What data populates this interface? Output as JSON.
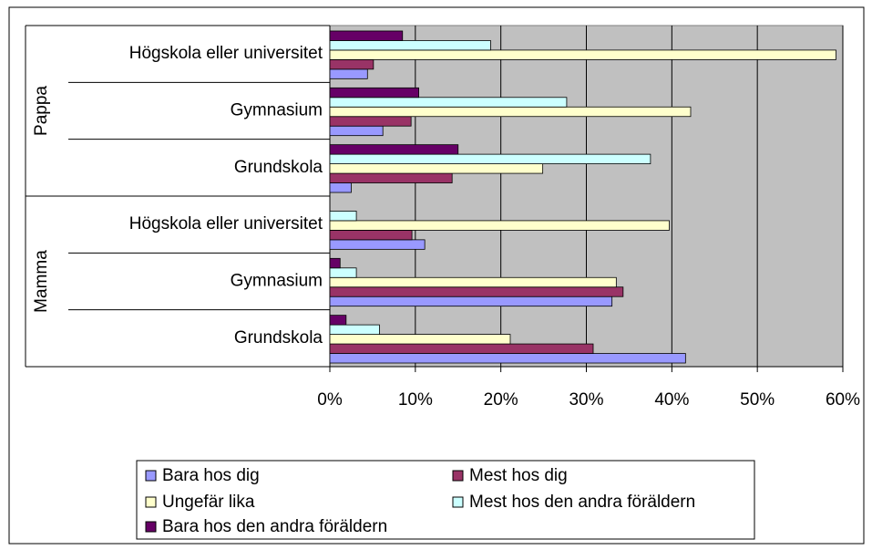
{
  "chart_data": {
    "type": "bar",
    "orientation": "horizontal",
    "groups": [
      {
        "name": "Pappa",
        "categories": [
          "Högskola eller universitet",
          "Gymnasium",
          "Grundskola"
        ]
      },
      {
        "name": "Mamma",
        "categories": [
          "Högskola eller universitet",
          "Gymnasium",
          "Grundskola"
        ]
      }
    ],
    "series": [
      {
        "name": "Bara hos dig",
        "color": "#9999ff",
        "values": [
          4.4,
          6.2,
          2.5,
          11.1,
          33.0,
          41.6
        ]
      },
      {
        "name": "Mest hos dig",
        "color": "#993366",
        "values": [
          5.1,
          9.5,
          14.3,
          9.6,
          34.3,
          30.8
        ]
      },
      {
        "name": "Ungefär lika",
        "color": "#ffffcc",
        "values": [
          59.2,
          42.2,
          24.9,
          39.7,
          33.5,
          21.1
        ]
      },
      {
        "name": "Mest hos den andra föräldern",
        "color": "#ccffff",
        "values": [
          18.8,
          27.7,
          37.5,
          3.1,
          3.1,
          5.8
        ]
      },
      {
        "name": "Bara hos den andra föräldern",
        "color": "#660066",
        "values": [
          8.5,
          10.4,
          15.0,
          0,
          1.2,
          1.9
        ]
      }
    ],
    "xlim": [
      0,
      60
    ],
    "xticks": [
      {
        "value": 0,
        "label": "0%"
      },
      {
        "value": 10,
        "label": "10%"
      },
      {
        "value": 20,
        "label": "20%"
      },
      {
        "value": 30,
        "label": "30%"
      },
      {
        "value": 40,
        "label": "40%"
      },
      {
        "value": 50,
        "label": "50%"
      },
      {
        "value": 60,
        "label": "60%"
      }
    ],
    "grid": true,
    "plot_background": "#c0c0c0",
    "legend": "bottom"
  }
}
